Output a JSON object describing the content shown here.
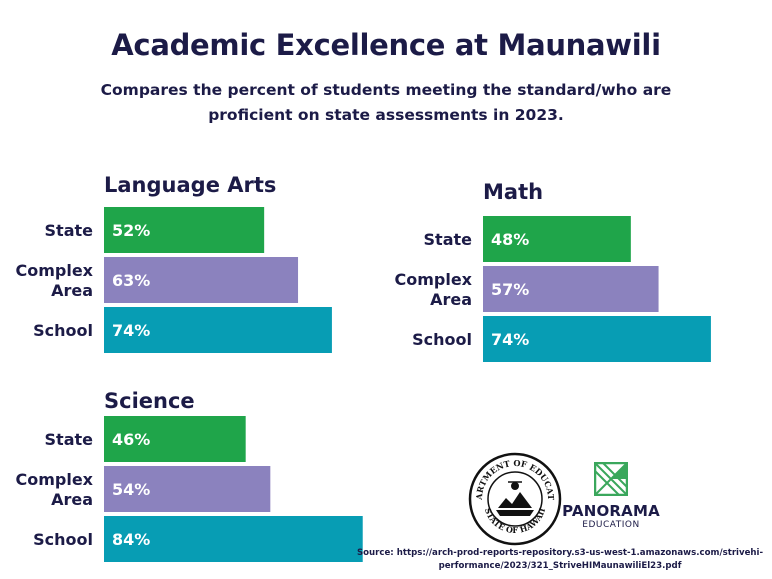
{
  "header": {
    "title": "Academic Excellence at Maunawili",
    "subtitle": "Compares the percent of students meeting the standard/who are proficient on state assessments in 2023."
  },
  "colors": {
    "text": "#1c1b47",
    "state": "#1fa54a",
    "complex_area": "#8b82be",
    "school": "#079db4",
    "panorama_green": "#3aa75c"
  },
  "chart_data": [
    {
      "type": "bar",
      "orientation": "horizontal",
      "title": "Language Arts",
      "categories": [
        [
          "State"
        ],
        [
          "Complex",
          "Area"
        ],
        [
          "School"
        ]
      ],
      "values": [
        52,
        63,
        74
      ],
      "value_labels": [
        "52%",
        "63%",
        "74%"
      ],
      "xlim": [
        0,
        100
      ]
    },
    {
      "type": "bar",
      "orientation": "horizontal",
      "title": "Math",
      "categories": [
        [
          "State"
        ],
        [
          "Complex",
          "Area"
        ],
        [
          "School"
        ]
      ],
      "values": [
        48,
        57,
        74
      ],
      "value_labels": [
        "48%",
        "57%",
        "74%"
      ],
      "xlim": [
        0,
        100
      ]
    },
    {
      "type": "bar",
      "orientation": "horizontal",
      "title": "Science",
      "categories": [
        [
          "State"
        ],
        [
          "Complex",
          "Area"
        ],
        [
          "School"
        ]
      ],
      "values": [
        46,
        54,
        84
      ],
      "value_labels": [
        "46%",
        "54%",
        "84%"
      ],
      "xlim": [
        0,
        100
      ]
    }
  ],
  "logos": {
    "seal_text_top": "DEPARTMENT OF EDUCATION",
    "seal_text_bottom": "STATE OF HAWAII",
    "panorama_name": "PANORAMA",
    "panorama_sub": "EDUCATION"
  },
  "footer": {
    "source_line1": "Source: https://arch-prod-reports-repository.s3-us-west-1.amazonaws.com/strivehi-",
    "source_line2": "performance/2023/321_StriveHIMaunawiliEl23.pdf"
  }
}
